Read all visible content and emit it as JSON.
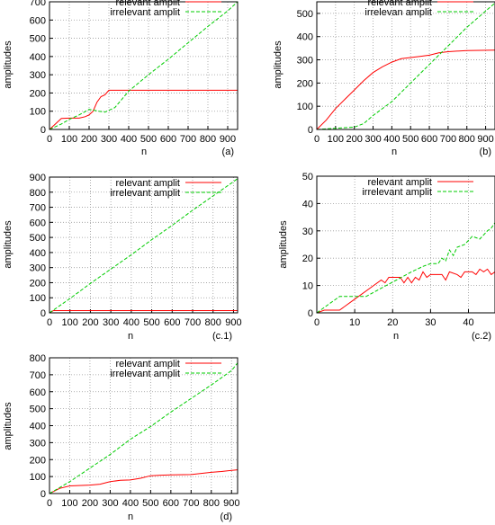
{
  "colors": {
    "relevant": "#ff0000",
    "irrelevant": "#00cc00"
  },
  "chart_data": [
    {
      "id": "a",
      "type": "line",
      "panel_label": "(a)",
      "xlabel": "n",
      "ylabel": "amplitudes",
      "xlim": [
        0,
        950
      ],
      "ylim": [
        0,
        700
      ],
      "xticks": [
        0,
        100,
        200,
        300,
        400,
        500,
        600,
        700,
        800,
        900
      ],
      "yticks": [
        0,
        100,
        200,
        300,
        400,
        500,
        600,
        700
      ],
      "grid": true,
      "legend": "top-right",
      "series": [
        {
          "name": "relevant amplit",
          "color": "#ff0000",
          "dash": false,
          "points": [
            [
              0,
              0
            ],
            [
              30,
              30
            ],
            [
              60,
              60
            ],
            [
              100,
              62
            ],
            [
              150,
              62
            ],
            [
              180,
              70
            ],
            [
              200,
              80
            ],
            [
              220,
              100
            ],
            [
              240,
              150
            ],
            [
              260,
              180
            ],
            [
              280,
              190
            ],
            [
              300,
              215
            ],
            [
              950,
              215
            ]
          ]
        },
        {
          "name": "irrelevant amplit",
          "color": "#00cc00",
          "dash": true,
          "points": [
            [
              0,
              0
            ],
            [
              60,
              30
            ],
            [
              100,
              55
            ],
            [
              150,
              80
            ],
            [
              200,
              110
            ],
            [
              250,
              100
            ],
            [
              280,
              95
            ],
            [
              330,
              120
            ],
            [
              400,
              210
            ],
            [
              500,
              300
            ],
            [
              600,
              385
            ],
            [
              700,
              475
            ],
            [
              800,
              565
            ],
            [
              900,
              650
            ],
            [
              950,
              700
            ]
          ]
        }
      ]
    },
    {
      "id": "b",
      "type": "line",
      "panel_label": "(b)",
      "xlabel": "n",
      "ylabel": "amplitudes",
      "xlim": [
        0,
        950
      ],
      "ylim": [
        0,
        550
      ],
      "xticks": [
        0,
        100,
        200,
        300,
        400,
        500,
        600,
        700,
        800,
        900
      ],
      "yticks": [
        0,
        100,
        200,
        300,
        400,
        500
      ],
      "grid": true,
      "legend": "top-right",
      "series": [
        {
          "name": "relevant amplit",
          "color": "#ff0000",
          "dash": false,
          "points": [
            [
              0,
              0
            ],
            [
              50,
              40
            ],
            [
              100,
              90
            ],
            [
              150,
              130
            ],
            [
              200,
              170
            ],
            [
              250,
              210
            ],
            [
              300,
              245
            ],
            [
              350,
              270
            ],
            [
              400,
              290
            ],
            [
              450,
              305
            ],
            [
              500,
              310
            ],
            [
              550,
              315
            ],
            [
              600,
              320
            ],
            [
              650,
              330
            ],
            [
              700,
              335
            ],
            [
              800,
              340
            ],
            [
              950,
              342
            ]
          ]
        },
        {
          "name": "irrelevan amplit",
          "color": "#00cc00",
          "dash": true,
          "points": [
            [
              0,
              0
            ],
            [
              100,
              5
            ],
            [
              200,
              10
            ],
            [
              250,
              25
            ],
            [
              300,
              60
            ],
            [
              400,
              120
            ],
            [
              500,
              200
            ],
            [
              600,
              280
            ],
            [
              700,
              360
            ],
            [
              800,
              440
            ],
            [
              900,
              510
            ],
            [
              950,
              545
            ]
          ]
        }
      ]
    },
    {
      "id": "c1",
      "type": "line",
      "panel_label": "(c.1)",
      "xlabel": "n",
      "ylabel": "amplitudes",
      "xlim": [
        0,
        920
      ],
      "ylim": [
        0,
        900
      ],
      "xticks": [
        0,
        100,
        200,
        300,
        400,
        500,
        600,
        700,
        800,
        900
      ],
      "yticks": [
        0,
        100,
        200,
        300,
        400,
        500,
        600,
        700,
        800,
        900
      ],
      "grid": true,
      "legend": "top-right",
      "series": [
        {
          "name": "relevant amplit",
          "color": "#ff0000",
          "dash": false,
          "points": [
            [
              0,
              0
            ],
            [
              20,
              15
            ],
            [
              920,
              15
            ]
          ]
        },
        {
          "name": "irrelevant amplit",
          "color": "#00cc00",
          "dash": true,
          "points": [
            [
              0,
              0
            ],
            [
              100,
              95
            ],
            [
              200,
              195
            ],
            [
              300,
              290
            ],
            [
              400,
              385
            ],
            [
              500,
              485
            ],
            [
              600,
              580
            ],
            [
              700,
              680
            ],
            [
              800,
              775
            ],
            [
              900,
              870
            ],
            [
              920,
              890
            ]
          ]
        }
      ]
    },
    {
      "id": "c2",
      "type": "line",
      "panel_label": "(c.2)",
      "xlabel": "n",
      "ylabel": "amplitudes",
      "xlim": [
        0,
        47
      ],
      "ylim": [
        0,
        50
      ],
      "xticks": [
        0,
        10,
        20,
        30,
        40
      ],
      "yticks": [
        0,
        10,
        20,
        30,
        40,
        50
      ],
      "grid": true,
      "legend": "top-right",
      "series": [
        {
          "name": "relevant amplit",
          "color": "#ff0000",
          "dash": false,
          "points": [
            [
              0,
              0
            ],
            [
              2,
              1
            ],
            [
              6,
              1
            ],
            [
              10,
              5
            ],
            [
              14,
              9
            ],
            [
              17,
              12
            ],
            [
              18,
              11
            ],
            [
              19,
              13
            ],
            [
              22,
              13
            ],
            [
              23,
              11
            ],
            [
              24,
              13
            ],
            [
              25,
              11
            ],
            [
              26,
              13
            ],
            [
              27,
              12
            ],
            [
              28,
              15
            ],
            [
              29,
              13
            ],
            [
              30,
              14
            ],
            [
              33,
              14
            ],
            [
              34,
              12
            ],
            [
              35,
              15
            ],
            [
              37,
              14
            ],
            [
              38,
              13
            ],
            [
              39,
              15
            ],
            [
              41,
              15
            ],
            [
              42,
              14
            ],
            [
              43,
              16
            ],
            [
              44,
              15
            ],
            [
              45,
              16
            ],
            [
              46,
              14
            ],
            [
              47,
              15
            ]
          ]
        },
        {
          "name": "irrelevant amplit",
          "color": "#00cc00",
          "dash": true,
          "points": [
            [
              0,
              0
            ],
            [
              3,
              3
            ],
            [
              6,
              6
            ],
            [
              13,
              6
            ],
            [
              17,
              9
            ],
            [
              21,
              12
            ],
            [
              25,
              15
            ],
            [
              28,
              17
            ],
            [
              30,
              18
            ],
            [
              32,
              18
            ],
            [
              33,
              20
            ],
            [
              34,
              19
            ],
            [
              35,
              23
            ],
            [
              36,
              21
            ],
            [
              37,
              24
            ],
            [
              39,
              25
            ],
            [
              41,
              28
            ],
            [
              43,
              27
            ],
            [
              45,
              30
            ],
            [
              46,
              31
            ],
            [
              47,
              33
            ]
          ]
        }
      ]
    },
    {
      "id": "d",
      "type": "line",
      "panel_label": "(d)",
      "xlabel": "n",
      "ylabel": "amplitudes",
      "xlim": [
        0,
        930
      ],
      "ylim": [
        0,
        800
      ],
      "xticks": [
        0,
        100,
        200,
        300,
        400,
        500,
        600,
        700,
        800,
        900
      ],
      "yticks": [
        0,
        100,
        200,
        300,
        400,
        500,
        600,
        700,
        800
      ],
      "grid": true,
      "legend": "top-right",
      "series": [
        {
          "name": "relevant amplit",
          "color": "#ff0000",
          "dash": false,
          "points": [
            [
              0,
              0
            ],
            [
              50,
              30
            ],
            [
              100,
              45
            ],
            [
              200,
              50
            ],
            [
              250,
              55
            ],
            [
              300,
              70
            ],
            [
              350,
              78
            ],
            [
              400,
              80
            ],
            [
              450,
              90
            ],
            [
              500,
              105
            ],
            [
              550,
              108
            ],
            [
              600,
              110
            ],
            [
              700,
              112
            ],
            [
              800,
              125
            ],
            [
              850,
              130
            ],
            [
              930,
              140
            ]
          ]
        },
        {
          "name": "irrelevant amplit",
          "color": "#00cc00",
          "dash": true,
          "points": [
            [
              0,
              0
            ],
            [
              100,
              70
            ],
            [
              200,
              150
            ],
            [
              300,
              230
            ],
            [
              400,
              320
            ],
            [
              500,
              395
            ],
            [
              600,
              480
            ],
            [
              700,
              560
            ],
            [
              800,
              640
            ],
            [
              900,
              725
            ],
            [
              930,
              770
            ]
          ]
        }
      ]
    }
  ]
}
